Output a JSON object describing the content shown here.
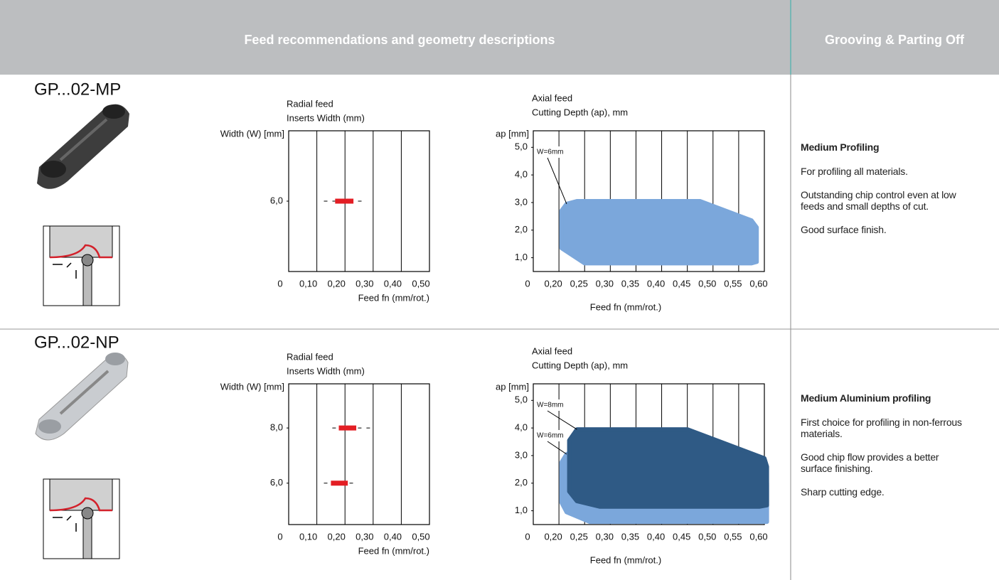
{
  "header": {
    "title": "Feed recommendations and geometry descriptions",
    "section": "Grooving & Parting Off"
  },
  "rows": [
    {
      "code": "GP...02-MP",
      "radial": {
        "type": "range-bar",
        "title": "Radial feed",
        "subtitle": "Inserts Width (mm)",
        "ylabel": "Width (W) [mm]",
        "xlabel": "Feed fn (mm/rot.)",
        "color": "#e31e24",
        "xlim": [
          0,
          0.5
        ],
        "xticks": [
          0,
          {
            "value": 0.1,
            "label": "0,10"
          },
          {
            "value": 0.2,
            "label": "0,20"
          },
          {
            "value": 0.3,
            "label": "0,30"
          },
          {
            "value": 0.4,
            "label": "0,40"
          },
          {
            "value": 0.5,
            "label": "0,50"
          }
        ],
        "ylim": [
          0,
          12
        ],
        "yticks": [
          {
            "value": 6,
            "label": "6,0"
          }
        ],
        "bars": [
          {
            "width": 6,
            "min": 0.125,
            "low": 0.165,
            "high": 0.23,
            "max": 0.265
          }
        ]
      },
      "axial": {
        "type": "area",
        "title": "Axial feed",
        "subtitle": "Cutting Depth (ap), mm",
        "ylabel": "ap [mm]",
        "xlabel": "Feed fn (mm/rot.)",
        "xlim": [
          0,
          0.6
        ],
        "xticks": [
          0,
          {
            "value": 0.2,
            "label": "0,20"
          },
          {
            "value": 0.25,
            "label": "0,25"
          },
          {
            "value": 0.3,
            "label": "0,30"
          },
          {
            "value": 0.35,
            "label": "0,35"
          },
          {
            "value": 0.4,
            "label": "0,40"
          },
          {
            "value": 0.45,
            "label": "0,45"
          },
          {
            "value": 0.5,
            "label": "0,50"
          },
          {
            "value": 0.55,
            "label": "0,55"
          },
          {
            "value": 0.6,
            "label": "0,60"
          }
        ],
        "ylim": [
          0.5,
          5.6
        ],
        "yticks": [
          {
            "value": 1,
            "label": "1,0"
          },
          {
            "value": 2,
            "label": "2,0"
          },
          {
            "value": 3,
            "label": "3,0"
          },
          {
            "value": 4,
            "label": "4,0"
          },
          {
            "value": 5,
            "label": "5,0"
          }
        ],
        "series": [
          {
            "name": "W=6mm",
            "color": "#7ba7db",
            "x": [
              0.205,
              0.215,
              0.235,
              0.475,
              0.575,
              0.585,
              0.585,
              0.575,
              0.25,
              0.205
            ],
            "y": [
              2.7,
              2.95,
              3.05,
              3.05,
              2.35,
              2.1,
              0.85,
              0.8,
              0.8,
              1.35
            ]
          }
        ]
      },
      "description": {
        "heading": "Medium Profiling",
        "paragraphs": [
          "For profiling all materials.",
          "Outstanding chip control even at low feeds and small depths of cut.",
          "Good surface finish."
        ]
      }
    },
    {
      "code": "GP...02-NP",
      "radial": {
        "type": "range-bar",
        "title": "Radial feed",
        "subtitle": "Inserts Width (mm)",
        "ylabel": "Width (W) [mm]",
        "xlabel": "Feed fn (mm/rot.)",
        "color": "#e31e24",
        "xlim": [
          0,
          0.5
        ],
        "xticks": [
          0,
          {
            "value": 0.1,
            "label": "0,10"
          },
          {
            "value": 0.2,
            "label": "0,20"
          },
          {
            "value": 0.3,
            "label": "0,30"
          },
          {
            "value": 0.4,
            "label": "0,40"
          },
          {
            "value": 0.5,
            "label": "0,50"
          }
        ],
        "ylim": [
          4.5,
          9.6
        ],
        "yticks": [
          {
            "value": 6,
            "label": "6,0"
          },
          {
            "value": 8,
            "label": "8,0"
          }
        ],
        "bars": [
          {
            "width": 8,
            "min": 0.155,
            "low": 0.178,
            "high": 0.24,
            "max": 0.29
          },
          {
            "width": 6,
            "min": 0.125,
            "low": 0.15,
            "high": 0.21,
            "max": 0.24
          }
        ]
      },
      "axial": {
        "type": "area",
        "title": "Axial feed",
        "subtitle": "Cutting Depth (ap), mm",
        "ylabel": "ap [mm]",
        "xlabel": "Feed fn (mm/rot.)",
        "xlim": [
          0,
          0.6
        ],
        "xticks": [
          0,
          {
            "value": 0.2,
            "label": "0,20"
          },
          {
            "value": 0.25,
            "label": "0,25"
          },
          {
            "value": 0.3,
            "label": "0,30"
          },
          {
            "value": 0.35,
            "label": "0,35"
          },
          {
            "value": 0.4,
            "label": "0,40"
          },
          {
            "value": 0.45,
            "label": "0,45"
          },
          {
            "value": 0.5,
            "label": "0,50"
          },
          {
            "value": 0.55,
            "label": "0,55"
          },
          {
            "value": 0.6,
            "label": "0,60"
          }
        ],
        "ylim": [
          0.5,
          5.6
        ],
        "yticks": [
          {
            "value": 1,
            "label": "1,0"
          },
          {
            "value": 2,
            "label": "2,0"
          },
          {
            "value": 3,
            "label": "3,0"
          },
          {
            "value": 4,
            "label": "4,0"
          },
          {
            "value": 5,
            "label": "5,0"
          }
        ],
        "series": [
          {
            "name": "W=6mm",
            "color": "#7ba7db",
            "x": [
              0.205,
              0.215,
              0.235,
              0.47,
              0.59,
              0.605,
              0.605,
              0.26,
              0.215,
              0.205
            ],
            "y": [
              2.75,
              3.05,
              3.2,
              3.2,
              2.35,
              2.0,
              0.6,
              0.6,
              0.95,
              1.3
            ]
          },
          {
            "name": "W=8mm",
            "color": "#2f5a85",
            "x": [
              0.22,
              0.235,
              0.45,
              0.6,
              0.605,
              0.605,
              0.59,
              0.28,
              0.235,
              0.22
            ],
            "y": [
              3.55,
              3.95,
              3.95,
              2.9,
              2.6,
              1.2,
              1.15,
              1.15,
              1.35,
              1.7
            ]
          }
        ]
      },
      "description": {
        "heading": "Medium Aluminium profiling",
        "paragraphs": [
          "First choice for profiling in non-ferrous materials.",
          "Good chip flow provides a better surface finishing.",
          "Sharp cutting edge."
        ]
      }
    }
  ]
}
